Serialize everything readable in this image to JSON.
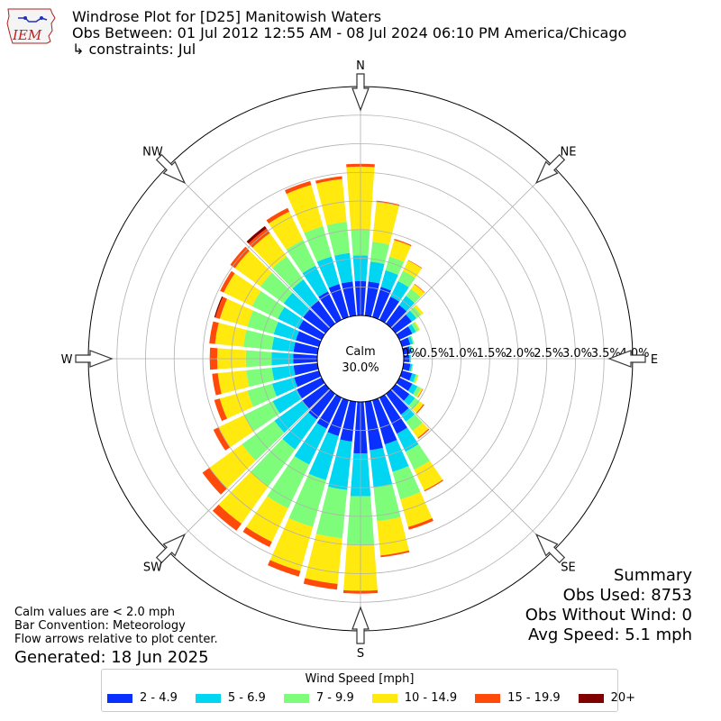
{
  "header": {
    "title": "Windrose Plot for [D25] Manitowish Waters",
    "obs_range": "Obs Between: 01 Jul 2012 12:55 AM - 08 Jul 2024 06:10 PM America/Chicago",
    "constraints": "↳ constraints: Jul"
  },
  "logo": {
    "text": "IEM"
  },
  "center": {
    "calm_label": "Calm",
    "calm_value": "30.0%"
  },
  "directions": [
    "N",
    "NE",
    "E",
    "SE",
    "S",
    "SW",
    "W",
    "NW"
  ],
  "radial_labels": [
    "0.0%",
    "0.5%",
    "1.0%",
    "1.5%",
    "2.0%",
    "2.5%",
    "3.0%",
    "3.5%",
    "4.0%"
  ],
  "summary": {
    "title": "Summary",
    "obs_used": "Obs Used: 8753",
    "obs_without_wind": "Obs Without Wind: 0",
    "avg_speed": "Avg Speed: 5.1 mph"
  },
  "notes": {
    "calm": "Calm values are < 2.0 mph",
    "convention": "Bar Convention: Meteorology",
    "flow": "Flow arrows relative to plot center."
  },
  "generated": "Generated: 18 Jun 2025",
  "legend": {
    "title": "Wind Speed [mph]",
    "items": [
      {
        "label": "2 - 4.9",
        "color": "#0a30ff"
      },
      {
        "label": "5 - 6.9",
        "color": "#00d5f2"
      },
      {
        "label": "7 - 9.9",
        "color": "#7dfd7a"
      },
      {
        "label": "10 - 14.9",
        "color": "#ffe90f"
      },
      {
        "label": "15 - 19.9",
        "color": "#ff4a0a"
      },
      {
        "label": "20+",
        "color": "#800000"
      }
    ]
  },
  "chart_data": {
    "type": "windrose",
    "calm_percent": 30.0,
    "radial_max": 4.0,
    "radial_ticks": [
      0.0,
      0.5,
      1.0,
      1.5,
      2.0,
      2.5,
      3.0,
      3.5,
      4.0
    ],
    "directions_deg": [
      0,
      10,
      20,
      30,
      40,
      50,
      60,
      70,
      80,
      90,
      100,
      110,
      120,
      130,
      140,
      150,
      160,
      170,
      180,
      190,
      200,
      210,
      220,
      230,
      240,
      250,
      260,
      270,
      280,
      290,
      300,
      310,
      320,
      330,
      340,
      350
    ],
    "bins": [
      "2 - 4.9",
      "5 - 6.9",
      "7 - 9.9",
      "10 - 14.9",
      "15 - 19.9",
      "20+"
    ],
    "cumulative_percent": [
      [
        0.6,
        1.05,
        1.5,
        2.6,
        2.65,
        2.65
      ],
      [
        0.6,
        0.95,
        1.3,
        2.0,
        2.02,
        2.02
      ],
      [
        0.55,
        0.85,
        1.1,
        1.4,
        1.42,
        1.42
      ],
      [
        0.45,
        0.75,
        0.95,
        1.15,
        1.16,
        1.16
      ],
      [
        0.4,
        0.6,
        0.75,
        0.85,
        0.86,
        0.86
      ],
      [
        0.35,
        0.45,
        0.55,
        0.6,
        0.6,
        0.6
      ],
      [
        0.25,
        0.32,
        0.38,
        0.4,
        0.4,
        0.4
      ],
      [
        0.15,
        0.2,
        0.22,
        0.22,
        0.22,
        0.22
      ],
      [
        0.12,
        0.15,
        0.17,
        0.17,
        0.17,
        0.17
      ],
      [
        0.1,
        0.12,
        0.13,
        0.13,
        0.13,
        0.13
      ],
      [
        0.12,
        0.15,
        0.17,
        0.17,
        0.17,
        0.17
      ],
      [
        0.18,
        0.25,
        0.28,
        0.3,
        0.3,
        0.3
      ],
      [
        0.25,
        0.35,
        0.42,
        0.45,
        0.46,
        0.46
      ],
      [
        0.3,
        0.42,
        0.52,
        0.6,
        0.62,
        0.62
      ],
      [
        0.45,
        0.6,
        0.8,
        0.95,
        0.97,
        0.97
      ],
      [
        0.7,
        1.05,
        1.4,
        1.8,
        1.82,
        1.82
      ],
      [
        0.8,
        1.3,
        1.8,
        2.3,
        2.35,
        2.35
      ],
      [
        0.85,
        1.5,
        2.1,
        2.7,
        2.73,
        2.73
      ],
      [
        0.9,
        1.65,
        2.5,
        3.3,
        3.35,
        3.35
      ],
      [
        0.7,
        1.55,
        2.4,
        3.2,
        3.3,
        3.3
      ],
      [
        0.65,
        1.45,
        2.3,
        3.1,
        3.2,
        3.2
      ],
      [
        0.6,
        1.3,
        2.15,
        2.8,
        2.9,
        2.9
      ],
      [
        0.55,
        1.2,
        2.0,
        2.8,
        2.95,
        2.95
      ],
      [
        0.5,
        1.1,
        1.8,
        2.5,
        2.65,
        2.65
      ],
      [
        0.48,
        0.95,
        1.5,
        2.0,
        2.1,
        2.1
      ],
      [
        0.45,
        0.85,
        1.3,
        1.8,
        1.9,
        1.9
      ],
      [
        0.42,
        0.8,
        1.25,
        1.75,
        1.85,
        1.85
      ],
      [
        0.42,
        0.8,
        1.25,
        1.75,
        1.88,
        1.88
      ],
      [
        0.42,
        0.8,
        1.3,
        1.8,
        1.9,
        1.9
      ],
      [
        0.42,
        0.82,
        1.3,
        1.8,
        1.88,
        1.9
      ],
      [
        0.45,
        0.85,
        1.35,
        1.9,
        1.97,
        1.97
      ],
      [
        0.48,
        0.9,
        1.4,
        1.95,
        2.05,
        2.05
      ],
      [
        0.5,
        0.95,
        1.45,
        1.95,
        2.05,
        2.1
      ],
      [
        0.55,
        1.05,
        1.55,
        2.1,
        2.17,
        2.17
      ],
      [
        0.6,
        1.1,
        1.65,
        2.4,
        2.47,
        2.47
      ],
      [
        0.6,
        1.1,
        1.65,
        2.4,
        2.45,
        2.45
      ]
    ],
    "xlabel": "",
    "ylabel": ""
  }
}
